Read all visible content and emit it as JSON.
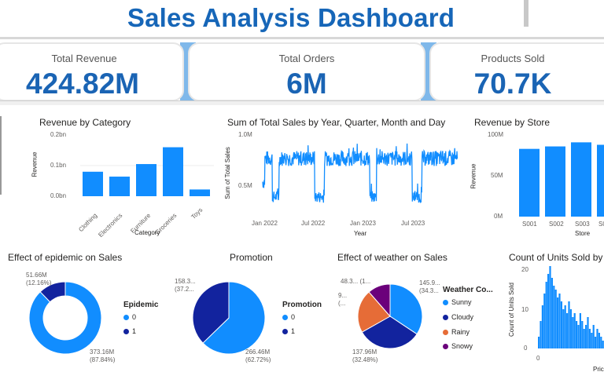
{
  "title": "Sales Analysis Dashboard",
  "kpis": [
    {
      "label": "Total Revenue",
      "value": "424.82M"
    },
    {
      "label": "Total Orders",
      "value": "6M"
    },
    {
      "label": "Products Sold",
      "value": "70.7K"
    }
  ],
  "colors": {
    "blue": "#118dff",
    "navy": "#12239e",
    "orange": "#e66c37",
    "purple": "#6b007b",
    "title": "#1666b8"
  },
  "revenue_by_category": {
    "title": "Revenue by Category",
    "chart_data": {
      "type": "bar",
      "categories": [
        "Clothing",
        "Electronics",
        "Furniture",
        "Groceries",
        "Toys"
      ],
      "values": [
        0.08,
        0.064,
        0.105,
        0.16,
        0.022
      ],
      "ylim": [
        0,
        0.2
      ],
      "yticks": [
        "0.2bn",
        "0.1bn",
        "0.0bn"
      ],
      "xlabel": "Category",
      "ylabel": "Revenue"
    }
  },
  "sales_over_time": {
    "title": "Sum of Total Sales by Year, Quarter, Month and Day",
    "chart_data": {
      "type": "line",
      "xticks": [
        "Jan 2022",
        "Jul 2022",
        "Jan 2023",
        "Jul 2023"
      ],
      "yticks": [
        "1.0M",
        "0.5M"
      ],
      "ylim": [
        0.2,
        1.0
      ],
      "xlabel": "Year",
      "ylabel": "Sum of Total Sales"
    }
  },
  "revenue_by_store": {
    "title": "Revenue by Store",
    "chart_data": {
      "type": "bar",
      "categories": [
        "S001",
        "S002",
        "S003",
        "S0"
      ],
      "values": [
        83,
        86,
        91,
        88
      ],
      "ylim": [
        0,
        100
      ],
      "yticks": [
        "100M",
        "50M",
        "0M"
      ],
      "xlabel": "Store",
      "ylabel": "Revenue"
    }
  },
  "epidemic": {
    "title": "Effect of epidemic on Sales",
    "legend_title": "Epidemic",
    "legend": [
      "0",
      "1"
    ],
    "label_small": [
      "51.66M",
      "(12.16%)"
    ],
    "label_large": [
      "373.16M",
      "(87.84%)"
    ],
    "chart_data": {
      "type": "pie",
      "categories": [
        "0",
        "1"
      ],
      "values": [
        373.16,
        51.66
      ],
      "percent": [
        87.84,
        12.16
      ]
    }
  },
  "promotion": {
    "title": "Promotion",
    "legend_title": "Promotion",
    "legend": [
      "0",
      "1"
    ],
    "label_small": [
      "158.3...",
      "(37.2..."
    ],
    "label_large": [
      "266.46M",
      "(62.72%)"
    ],
    "chart_data": {
      "type": "pie",
      "categories": [
        "0",
        "1"
      ],
      "values": [
        266.46,
        158.36
      ],
      "percent": [
        62.72,
        37.28
      ]
    }
  },
  "weather": {
    "title": "Effect of weather on Sales",
    "legend_title": "Weather Co...",
    "legend": [
      "Sunny",
      "Cloudy",
      "Rainy",
      "Snowy"
    ],
    "label_snowy": [
      "48.3...",
      "(1..."
    ],
    "label_rainy": [
      "9...",
      "(..."
    ],
    "label_sunny": [
      "145.9...",
      "(34.3..."
    ],
    "label_cloudy": [
      "137.96M",
      "(32.48%)"
    ],
    "chart_data": {
      "type": "pie",
      "categories": [
        "Sunny",
        "Cloudy",
        "Rainy",
        "Snowy"
      ],
      "values": [
        145.9,
        137.96,
        92.6,
        48.3
      ],
      "percent": [
        34.35,
        32.48,
        21.8,
        11.37
      ]
    }
  },
  "units_sold": {
    "title": "Count of Units Sold by",
    "chart_data": {
      "type": "bar",
      "yticks": [
        "20",
        "10",
        "0"
      ],
      "ylim": [
        0,
        20
      ],
      "xticks": [
        "0"
      ],
      "xlabel": "Pric",
      "ylabel": "Count of Units Sold",
      "values": [
        3,
        7,
        11,
        14,
        17,
        19,
        21,
        18,
        16,
        15,
        13,
        14,
        12,
        10,
        11,
        9,
        12,
        10,
        8,
        9,
        7,
        6,
        9,
        7,
        5,
        6,
        8,
        5,
        4,
        6,
        3,
        5,
        4,
        3,
        2
      ]
    }
  }
}
